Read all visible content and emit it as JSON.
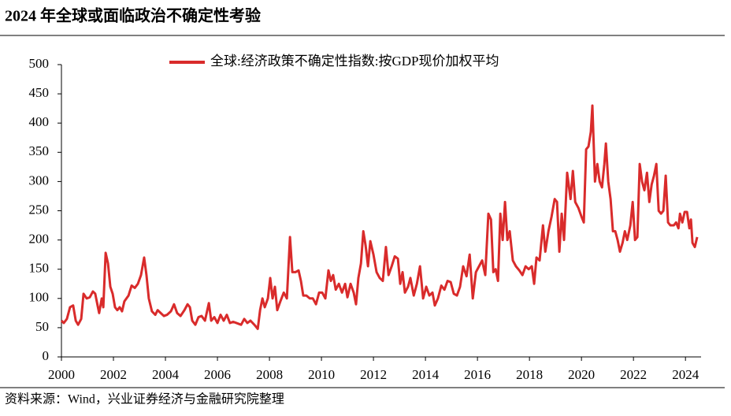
{
  "chart_data": {
    "type": "line",
    "title": "2024 年全球或面临政治不确定性考验",
    "source": "资料来源：Wind，兴业证券经济与金融研究院整理",
    "legend": "top",
    "xlim": [
      2000,
      2024.6
    ],
    "xticks": [
      2000,
      2002,
      2004,
      2006,
      2008,
      2010,
      2012,
      2014,
      2016,
      2018,
      2020,
      2022,
      2024
    ],
    "ylim": [
      0,
      500
    ],
    "yticks": [
      0,
      50,
      100,
      150,
      200,
      250,
      300,
      350,
      400,
      450,
      500
    ],
    "x": [
      2000,
      2000.09,
      2000.21,
      2000.33,
      2000.45,
      2000.55,
      2000.64,
      2000.76,
      2000.85,
      2000.97,
      2001.09,
      2001.21,
      2001.3,
      2001.39,
      2001.45,
      2001.55,
      2001.61,
      2001.7,
      2001.79,
      2001.88,
      2001.97,
      2002.06,
      2002.15,
      2002.24,
      2002.33,
      2002.42,
      2002.58,
      2002.7,
      2002.82,
      2002.94,
      2003.06,
      2003.18,
      2003.27,
      2003.36,
      2003.48,
      2003.61,
      2003.7,
      2003.82,
      2003.94,
      2004.06,
      2004.21,
      2004.33,
      2004.45,
      2004.58,
      2004.73,
      2004.85,
      2004.94,
      2005.03,
      2005.15,
      2005.27,
      2005.39,
      2005.52,
      2005.67,
      2005.76,
      2005.88,
      2006,
      2006.12,
      2006.24,
      2006.36,
      2006.48,
      2006.61,
      2006.73,
      2006.91,
      2007.03,
      2007.15,
      2007.27,
      2007.42,
      2007.55,
      2007.64,
      2007.73,
      2007.82,
      2007.94,
      2008.03,
      2008.12,
      2008.21,
      2008.3,
      2008.42,
      2008.55,
      2008.67,
      2008.79,
      2008.88,
      2009,
      2009.12,
      2009.21,
      2009.3,
      2009.42,
      2009.55,
      2009.67,
      2009.79,
      2009.91,
      2010.03,
      2010.15,
      2010.27,
      2010.36,
      2010.45,
      2010.55,
      2010.67,
      2010.79,
      2010.91,
      2011,
      2011.12,
      2011.24,
      2011.33,
      2011.42,
      2011.52,
      2011.61,
      2011.7,
      2011.79,
      2011.88,
      2012,
      2012.12,
      2012.24,
      2012.36,
      2012.48,
      2012.58,
      2012.7,
      2012.82,
      2012.94,
      2013.03,
      2013.12,
      2013.21,
      2013.33,
      2013.42,
      2013.55,
      2013.67,
      2013.79,
      2013.91,
      2014.03,
      2014.15,
      2014.27,
      2014.36,
      2014.48,
      2014.61,
      2014.73,
      2014.85,
      2014.97,
      2015.09,
      2015.21,
      2015.33,
      2015.45,
      2015.58,
      2015.7,
      2015.82,
      2015.94,
      2016.06,
      2016.18,
      2016.3,
      2016.42,
      2016.52,
      2016.61,
      2016.7,
      2016.79,
      2016.88,
      2016.97,
      2017.06,
      2017.15,
      2017.24,
      2017.36,
      2017.48,
      2017.61,
      2017.73,
      2017.85,
      2017.97,
      2018.09,
      2018.18,
      2018.27,
      2018.39,
      2018.52,
      2018.61,
      2018.73,
      2018.85,
      2018.97,
      2019.06,
      2019.15,
      2019.24,
      2019.33,
      2019.45,
      2019.58,
      2019.67,
      2019.76,
      2019.88,
      2020,
      2020.09,
      2020.18,
      2020.27,
      2020.36,
      2020.42,
      2020.52,
      2020.61,
      2020.7,
      2020.79,
      2020.88,
      2020.94,
      2021.03,
      2021.12,
      2021.21,
      2021.3,
      2021.39,
      2021.48,
      2021.58,
      2021.67,
      2021.76,
      2021.88,
      2021.97,
      2022.06,
      2022.15,
      2022.24,
      2022.33,
      2022.42,
      2022.52,
      2022.61,
      2022.7,
      2022.79,
      2022.88,
      2022.97,
      2023.06,
      2023.15,
      2023.24,
      2023.33,
      2023.42,
      2023.55,
      2023.64,
      2023.73,
      2023.79,
      2023.88,
      2023.97,
      2024.06,
      2024.15,
      2024.21,
      2024.27,
      2024.36,
      2024.45
    ],
    "series": [
      {
        "name": "全球:经济政策不确定性指数:按GDP现价加权平均",
        "color": "#d92b2b",
        "values": [
          62,
          58,
          65,
          85,
          88,
          62,
          55,
          65,
          108,
          100,
          102,
          112,
          108,
          88,
          75,
          100,
          85,
          178,
          160,
          120,
          108,
          85,
          80,
          85,
          78,
          95,
          105,
          122,
          118,
          125,
          140,
          170,
          140,
          100,
          78,
          72,
          80,
          75,
          70,
          72,
          78,
          90,
          75,
          70,
          80,
          90,
          85,
          62,
          55,
          68,
          70,
          62,
          92,
          62,
          68,
          58,
          72,
          62,
          72,
          58,
          60,
          58,
          55,
          65,
          58,
          62,
          55,
          48,
          80,
          100,
          85,
          100,
          135,
          100,
          120,
          80,
          95,
          110,
          100,
          205,
          145,
          145,
          148,
          130,
          105,
          105,
          100,
          100,
          90,
          110,
          110,
          100,
          148,
          130,
          140,
          115,
          125,
          110,
          125,
          102,
          125,
          110,
          90,
          135,
          160,
          215,
          190,
          155,
          198,
          175,
          145,
          135,
          130,
          188,
          140,
          155,
          172,
          168,
          125,
          145,
          110,
          120,
          135,
          105,
          125,
          155,
          100,
          120,
          105,
          110,
          88,
          100,
          122,
          115,
          130,
          128,
          108,
          105,
          120,
          155,
          138,
          175,
          100,
          145,
          155,
          165,
          140,
          245,
          235,
          145,
          150,
          130,
          245,
          200,
          265,
          200,
          215,
          165,
          155,
          148,
          140,
          155,
          150,
          155,
          125,
          170,
          165,
          225,
          180,
          215,
          240,
          270,
          265,
          180,
          245,
          200,
          315,
          270,
          318,
          265,
          255,
          240,
          230,
          355,
          360,
          385,
          430,
          300,
          330,
          300,
          290,
          330,
          365,
          300,
          270,
          215,
          215,
          200,
          180,
          195,
          215,
          200,
          225,
          265,
          200,
          205,
          330,
          300,
          285,
          315,
          265,
          295,
          310,
          330,
          250,
          245,
          250,
          310,
          230,
          225,
          225,
          230,
          220,
          245,
          230,
          248,
          248,
          220,
          235,
          195,
          188,
          205
        ]
      }
    ]
  }
}
